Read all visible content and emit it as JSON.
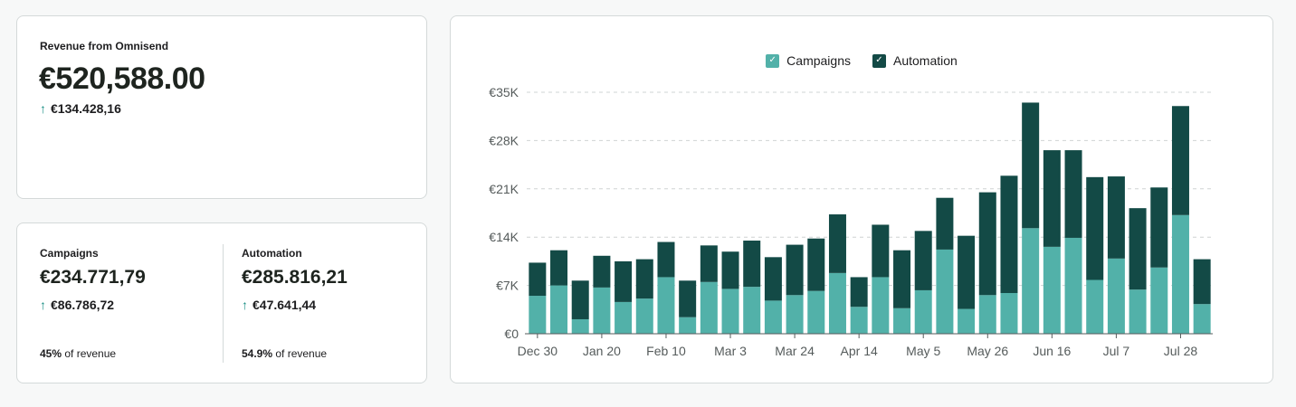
{
  "total": {
    "label": "Revenue from Omnisend",
    "value": "€520,588.00",
    "delta": "€134.428,16"
  },
  "campaigns": {
    "label": "Campaigns",
    "value": "€234.771,79",
    "delta": "€86.786,72",
    "share_pct": "45%",
    "share_suffix": " of revenue"
  },
  "automation": {
    "label": "Automation",
    "value": "€285.816,21",
    "delta": "€47.641,44",
    "share_pct": "54.9%",
    "share_suffix": " of revenue"
  },
  "icons": {
    "arrow": "arrow-up-icon",
    "check": "check-icon"
  },
  "colors": {
    "campaigns": "#52b1a9",
    "automation": "#134a46",
    "grid": "#cfd4d4",
    "arrow": "#1a8f84"
  },
  "chart_data": {
    "type": "bar",
    "stacked": true,
    "title": "",
    "legend": [
      "Campaigns",
      "Automation"
    ],
    "legend_position": "top-center",
    "ylim": [
      0,
      35000
    ],
    "y_ticks": [
      0,
      7000,
      14000,
      21000,
      28000,
      35000
    ],
    "y_tick_labels": [
      "€0",
      "€7K",
      "€14K",
      "€21K",
      "€28K",
      "€35K"
    ],
    "x_tick_labels": [
      "Dec 30",
      "Jan 20",
      "Feb 10",
      "Mar 3",
      "Mar 24",
      "Apr 14",
      "May 5",
      "May 26",
      "Jun 16",
      "Jul 7",
      "Jul 28"
    ],
    "x_tick_every": 3,
    "series": [
      {
        "name": "Campaigns",
        "values": [
          5500,
          7000,
          2100,
          6700,
          4600,
          5100,
          8200,
          2400,
          7500,
          6500,
          6800,
          4800,
          5600,
          6200,
          8800,
          3900,
          8200,
          3700,
          6300,
          12200,
          3600,
          5600,
          5900,
          15300,
          12600,
          13900,
          7800,
          10900,
          6400,
          9600,
          17200,
          4300
        ]
      },
      {
        "name": "Automation",
        "values": [
          4800,
          5100,
          5600,
          4600,
          5900,
          5700,
          5100,
          5300,
          5300,
          5400,
          6700,
          6300,
          7300,
          7600,
          8500,
          4300,
          7600,
          8400,
          8600,
          7500,
          10600,
          14900,
          17000,
          18200,
          14000,
          12700,
          14900,
          11900,
          11800,
          11600,
          15800,
          6500
        ]
      }
    ]
  }
}
